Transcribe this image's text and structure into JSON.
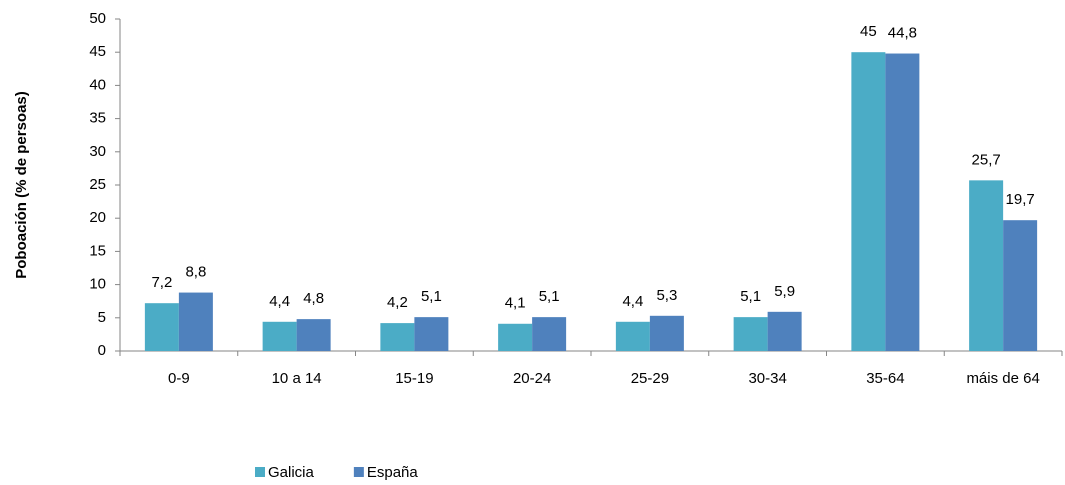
{
  "chart_data": {
    "type": "bar",
    "y_label": "Poboación (% de persoas)",
    "categories": [
      "0-9",
      "10 a 14",
      "15-19",
      "20-24",
      "25-29",
      "30-34",
      "35-64",
      "máis de 64"
    ],
    "series": [
      {
        "name": "Galicia",
        "color": "#4bacc6",
        "values": [
          7.2,
          4.4,
          4.2,
          4.1,
          4.4,
          5.1,
          45,
          25.7
        ],
        "value_labels": [
          "7,2",
          "4,4",
          "4,2",
          "4,1",
          "4,4",
          "5,1",
          "45",
          "25,7"
        ]
      },
      {
        "name": "España",
        "color": "#4f81bd",
        "values": [
          8.8,
          4.8,
          5.1,
          5.1,
          5.3,
          5.9,
          44.8,
          19.7
        ],
        "value_labels": [
          "8,8",
          "4,8",
          "5,1",
          "5,1",
          "5,3",
          "5,9",
          "44,8",
          "19,7"
        ]
      }
    ],
    "ylim": [
      0,
      50
    ],
    "yticks": [
      0,
      5,
      10,
      15,
      20,
      25,
      30,
      35,
      40,
      45,
      50
    ],
    "legend": "bottom"
  }
}
